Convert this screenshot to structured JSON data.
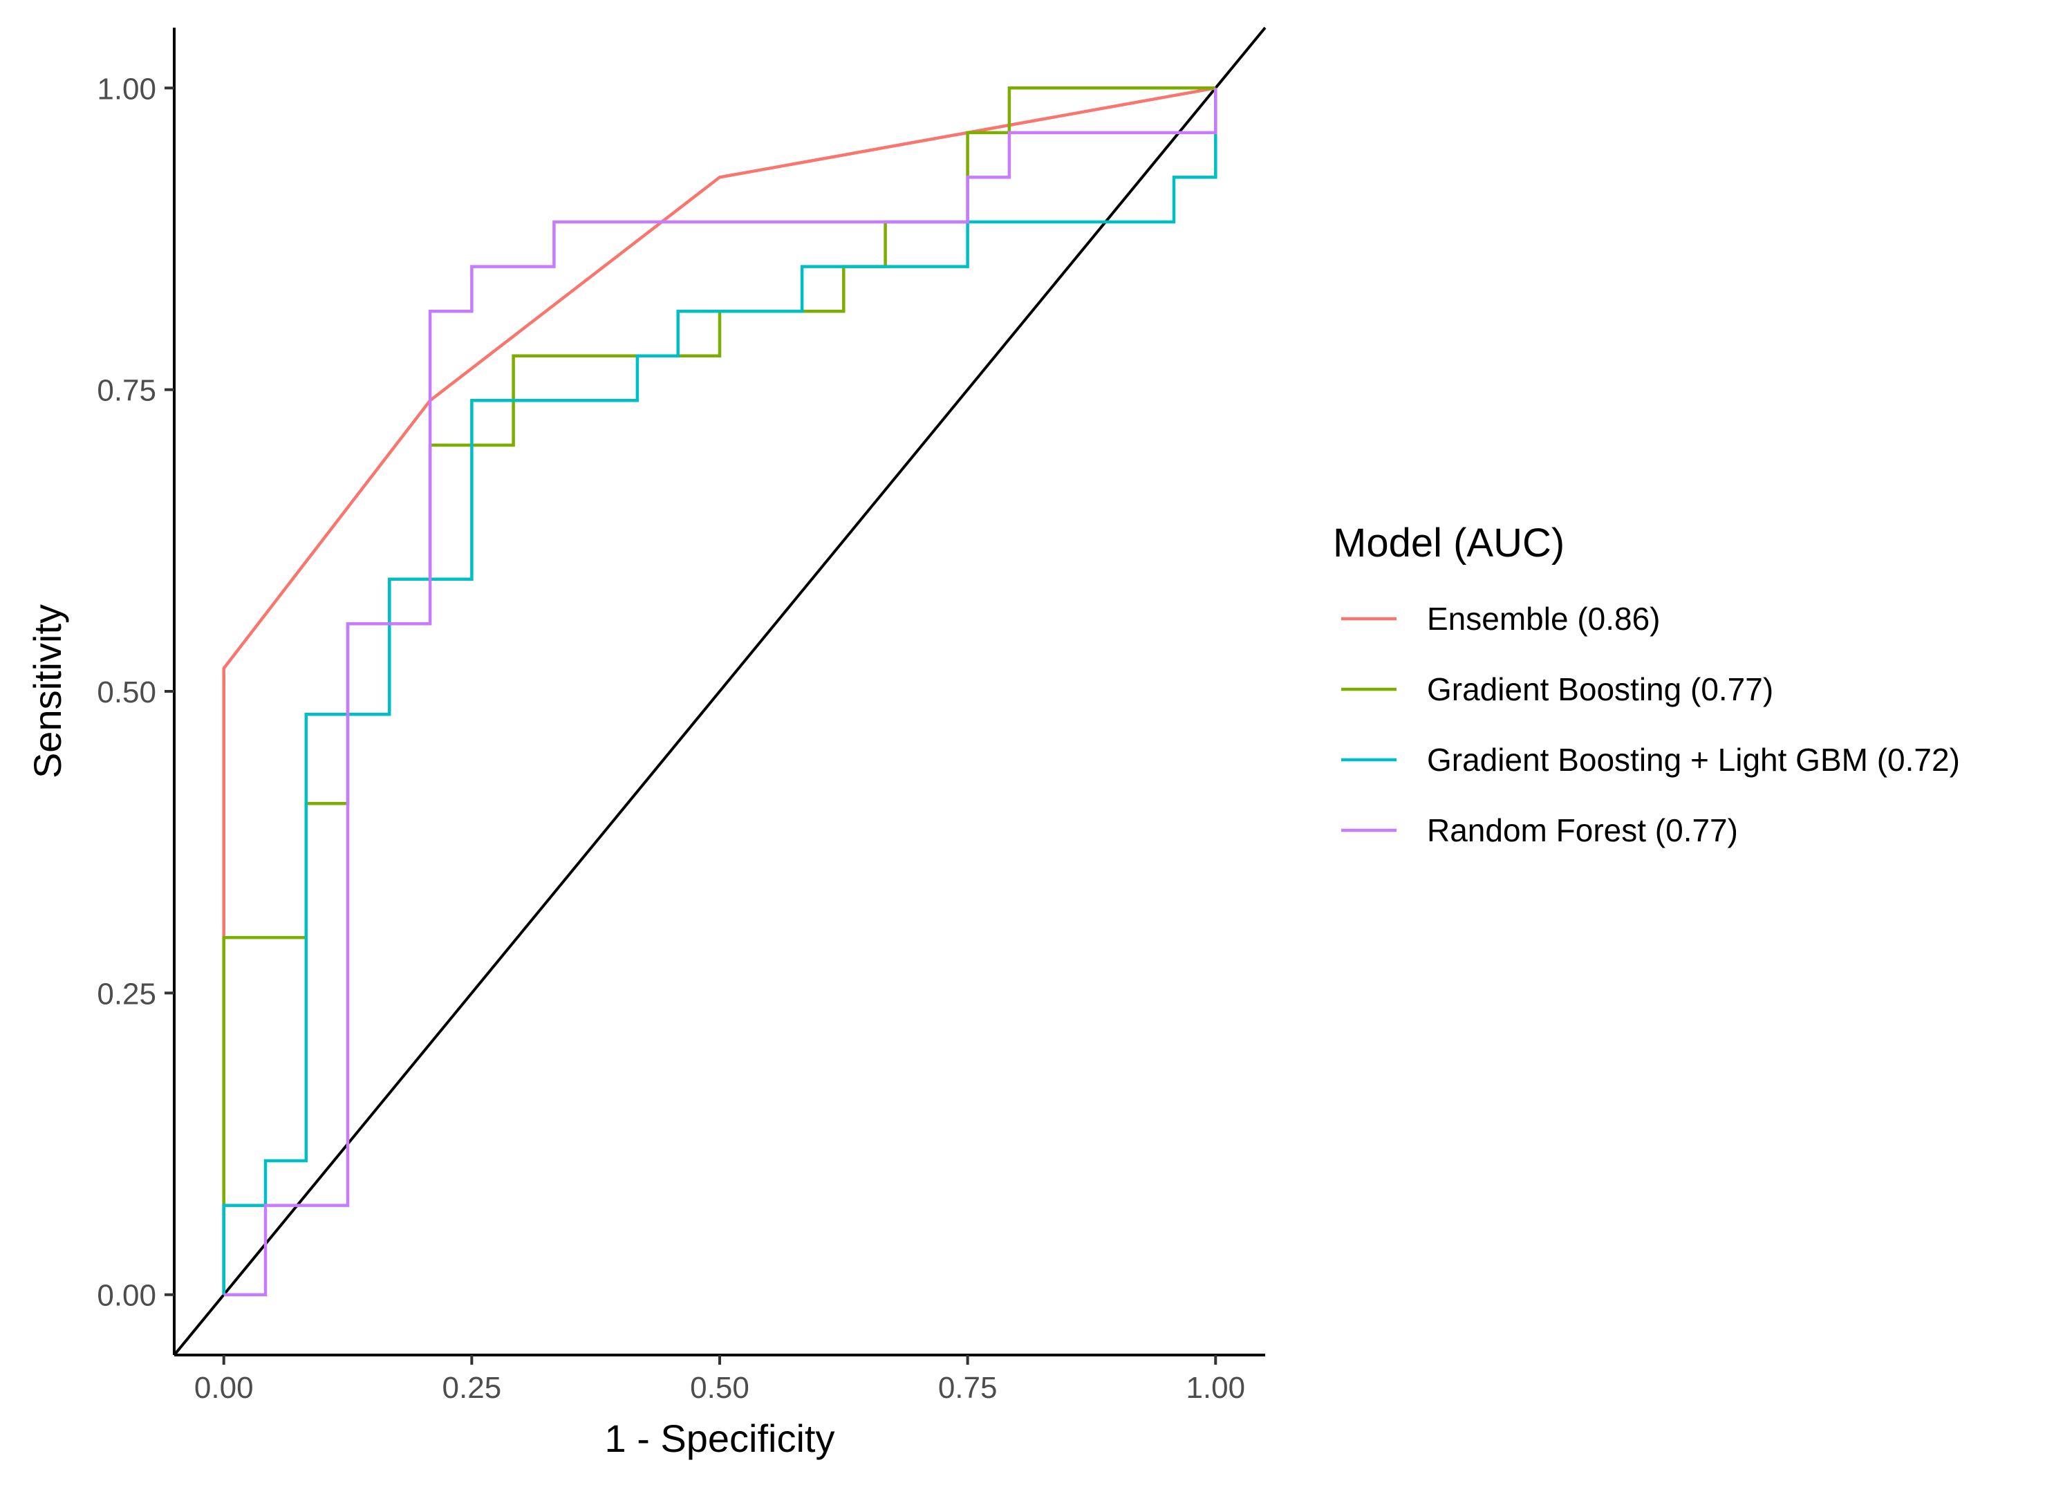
{
  "chart_data": {
    "type": "line",
    "title": "",
    "xlabel": "1 - Specificity",
    "ylabel": "Sensitivity",
    "xlim": [
      -0.05,
      1.05
    ],
    "ylim": [
      -0.05,
      1.05
    ],
    "xticks": [
      0,
      0.25,
      0.5,
      0.75,
      1
    ],
    "yticks": [
      0,
      0.25,
      0.5,
      0.75,
      1
    ],
    "xtick_labels": [
      "0.00",
      "0.25",
      "0.50",
      "0.75",
      "1.00"
    ],
    "ytick_labels": [
      "0.00",
      "0.25",
      "0.50",
      "0.75",
      "1.00"
    ],
    "grid": false,
    "legend": {
      "title": "Model (AUC)",
      "position": "right",
      "labels": [
        "Ensemble (0.86)",
        "Gradient Boosting (0.77)",
        "Gradient Boosting + Light GBM (0.72)",
        "Random Forest (0.77)"
      ]
    },
    "reference_line": {
      "name": "diagonal",
      "color": "#000000",
      "x": [
        -0.05,
        1.05
      ],
      "y": [
        -0.05,
        1.05
      ]
    },
    "series": [
      {
        "name": "Ensemble",
        "auc": 0.86,
        "color": "#F8766D",
        "x": [
          0,
          0,
          0.208,
          0.5,
          0.75,
          1
        ],
        "y": [
          0,
          0.519,
          0.741,
          0.926,
          0.963,
          1
        ]
      },
      {
        "name": "Gradient Boosting",
        "auc": 0.77,
        "color": "#7CAE00",
        "x": [
          0,
          0,
          0.083,
          0.083,
          0.125,
          0.125,
          0.167,
          0.167,
          0.208,
          0.208,
          0.292,
          0.292,
          0.417,
          0.417,
          0.5,
          0.5,
          0.583,
          0.583,
          0.625,
          0.625,
          0.667,
          0.667,
          0.75,
          0.75,
          0.792,
          0.792,
          1
        ],
        "y": [
          0,
          0.296,
          0.296,
          0.407,
          0.407,
          0.556,
          0.556,
          0.593,
          0.593,
          0.704,
          0.704,
          0.778,
          0.778,
          0.778,
          0.778,
          0.815,
          0.815,
          0.815,
          0.815,
          0.852,
          0.852,
          0.889,
          0.889,
          0.963,
          0.963,
          1,
          1
        ]
      },
      {
        "name": "Gradient Boosting + Light GBM",
        "auc": 0.72,
        "color": "#00BFC4",
        "x": [
          0,
          0,
          0.042,
          0.042,
          0.083,
          0.083,
          0.167,
          0.167,
          0.25,
          0.25,
          0.417,
          0.417,
          0.458,
          0.458,
          0.583,
          0.583,
          0.75,
          0.75,
          0.958,
          0.958,
          1,
          1
        ],
        "y": [
          0,
          0.074,
          0.074,
          0.111,
          0.111,
          0.481,
          0.481,
          0.593,
          0.593,
          0.741,
          0.741,
          0.778,
          0.778,
          0.815,
          0.815,
          0.852,
          0.852,
          0.889,
          0.889,
          0.926,
          0.926,
          1
        ]
      },
      {
        "name": "Random Forest",
        "auc": 0.77,
        "color": "#C77CFF",
        "x": [
          0,
          0.042,
          0.042,
          0.125,
          0.125,
          0.208,
          0.208,
          0.25,
          0.25,
          0.333,
          0.333,
          0.75,
          0.75,
          0.792,
          0.792,
          1,
          1
        ],
        "y": [
          0,
          0,
          0.074,
          0.074,
          0.556,
          0.556,
          0.815,
          0.815,
          0.852,
          0.852,
          0.889,
          0.889,
          0.926,
          0.926,
          0.963,
          0.963,
          1
        ]
      }
    ]
  }
}
